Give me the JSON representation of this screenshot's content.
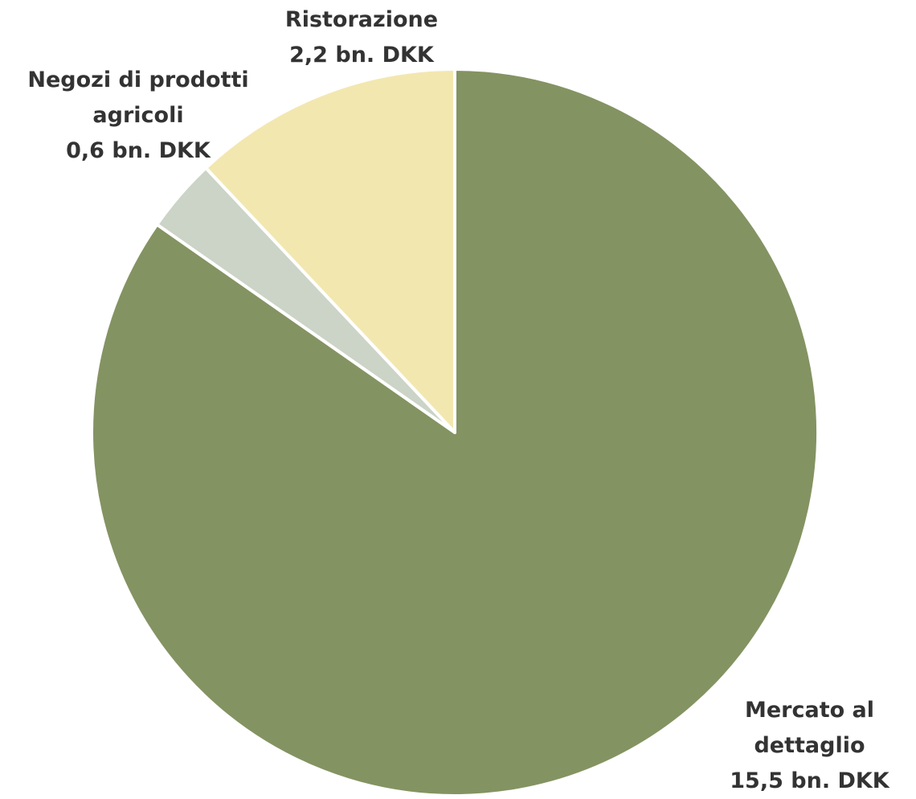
{
  "chart_data": {
    "type": "pie",
    "categories": [
      "Mercato al dettaglio",
      "Negozi di prodotti agricoli",
      "Ristorazione"
    ],
    "values": [
      15.5,
      0.6,
      2.2
    ],
    "value_labels": [
      "15,5 bn. DKK",
      "0,6 bn. DKK",
      "2,2 bn. DKK"
    ],
    "colors": [
      "#849362",
      "#cbd4c7",
      "#f3e7b0"
    ]
  }
}
